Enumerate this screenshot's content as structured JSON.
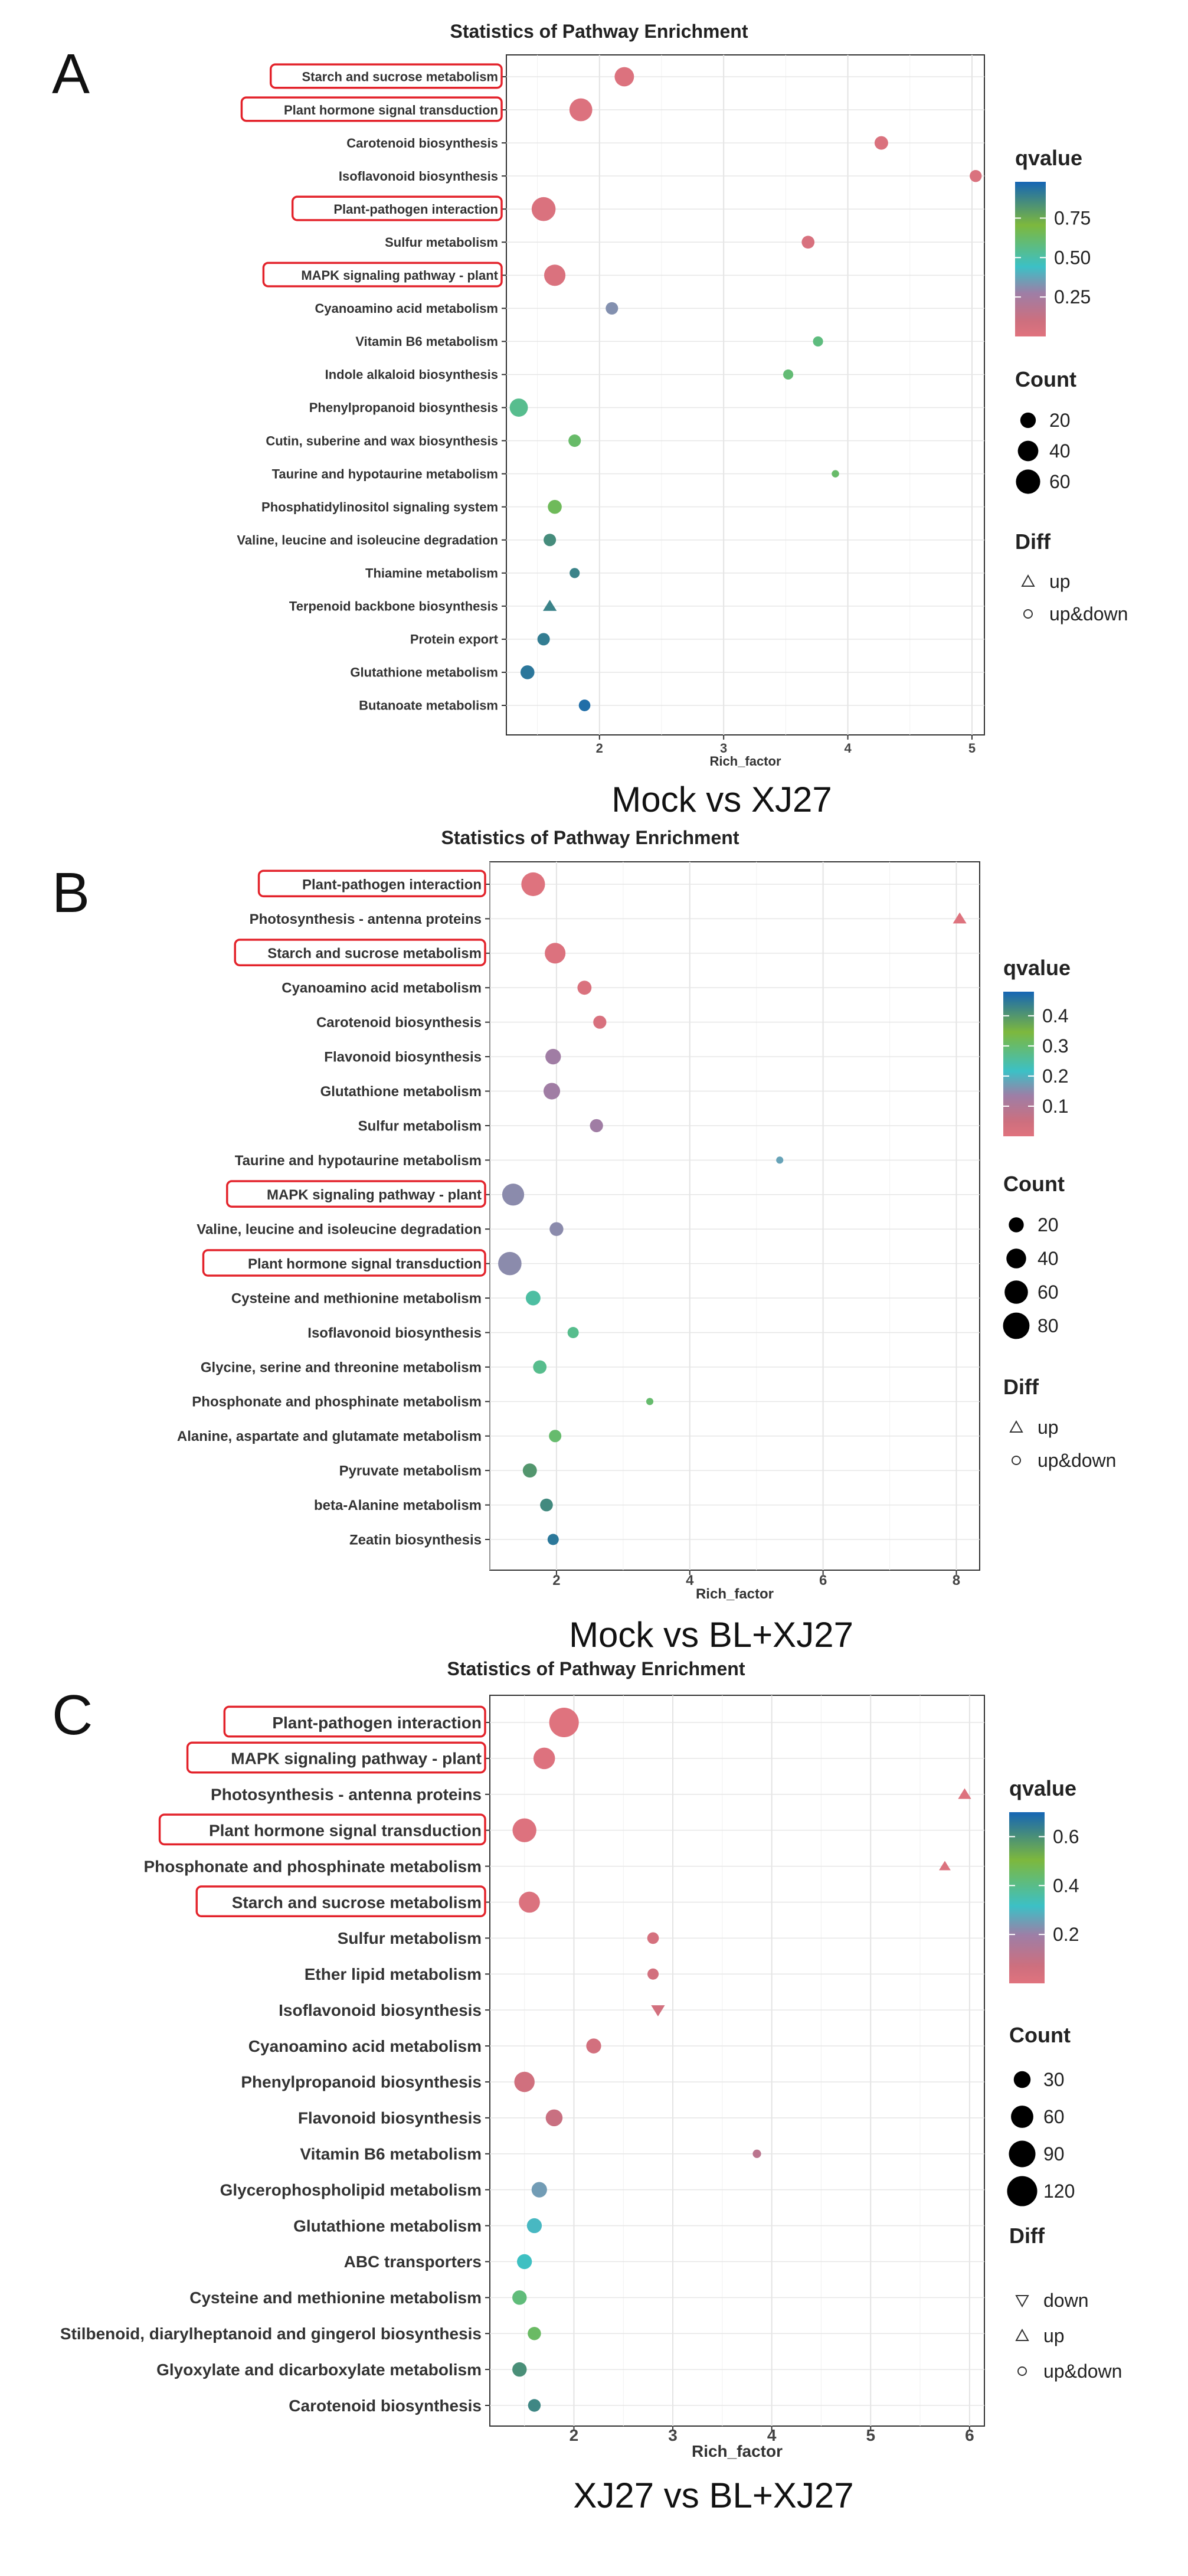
{
  "chart_data": [
    {
      "panel_label": "A",
      "type": "scatter",
      "title": "Statistics of Pathway Enrichment",
      "xlabel": "Rich_factor",
      "ylabel": "",
      "caption": "Mock  vs  XJ27",
      "x_ticks": [
        "2",
        "3",
        "4",
        "5"
      ],
      "xlim": [
        1.25,
        5.1
      ],
      "color_legend": {
        "title": "qvalue",
        "ticks": [
          "0.75",
          "0.50",
          "0.25"
        ],
        "tick_values": [
          0.75,
          0.5,
          0.25
        ],
        "range": [
          0.0,
          0.98
        ]
      },
      "size_legend": {
        "title": "Count",
        "ticks": [
          "20",
          "40",
          "60"
        ],
        "tick_values": [
          20,
          40,
          60
        ],
        "max": 70
      },
      "shape_legend": {
        "title": "Diff",
        "items": [
          "up",
          "up&down"
        ]
      },
      "categories": [
        "Starch and sucrose metabolism",
        "Plant hormone signal transduction",
        "Carotenoid biosynthesis",
        "Isoflavonoid biosynthesis",
        "Plant-pathogen interaction",
        "Sulfur metabolism",
        "MAPK signaling pathway - plant",
        "Cyanoamino acid metabolism",
        "Vitamin B6 metabolism",
        "Indole alkaloid biosynthesis",
        "Phenylpropanoid biosynthesis",
        "Cutin, suberine and wax biosynthesis",
        "Taurine and hypotaurine metabolism",
        "Phosphatidylinositol signaling system",
        "Valine, leucine and isoleucine degradation",
        "Thiamine metabolism",
        "Terpenoid backbone biosynthesis",
        "Protein export",
        "Glutathione metabolism",
        "Butanoate metabolism"
      ],
      "rich_factor": [
        2.2,
        1.85,
        4.27,
        5.03,
        1.55,
        3.68,
        1.64,
        2.1,
        3.76,
        3.52,
        1.35,
        1.8,
        3.9,
        1.64,
        1.6,
        1.8,
        1.6,
        1.55,
        1.42,
        1.88
      ],
      "count": [
        35,
        52,
        14,
        10,
        58,
        12,
        44,
        11,
        6,
        6,
        30,
        11,
        2,
        15,
        11,
        6,
        13,
        11,
        15,
        9
      ],
      "qvalue": [
        0.02,
        0.02,
        0.03,
        0.03,
        0.03,
        0.04,
        0.03,
        0.32,
        0.58,
        0.6,
        0.55,
        0.62,
        0.62,
        0.65,
        0.85,
        0.88,
        0.88,
        0.9,
        0.92,
        0.95
      ],
      "diff": [
        "up&down",
        "up&down",
        "up&down",
        "up&down",
        "up&down",
        "up&down",
        "up&down",
        "up&down",
        "up&down",
        "up&down",
        "up&down",
        "up&down",
        "up&down",
        "up&down",
        "up&down",
        "up&down",
        "up",
        "up&down",
        "up&down",
        "up&down"
      ],
      "highlighted": [
        "Starch and sucrose metabolism",
        "Plant hormone signal transduction",
        "Plant-pathogen interaction",
        "MAPK signaling pathway - plant"
      ]
    },
    {
      "panel_label": "B",
      "type": "scatter",
      "title": "Statistics of Pathway Enrichment",
      "xlabel": "Rich_factor",
      "ylabel": "",
      "caption": "Mock  vs  BL+XJ27",
      "x_ticks": [
        "2",
        "4",
        "6",
        "8"
      ],
      "xlim": [
        1.0,
        8.35
      ],
      "color_legend": {
        "title": "qvalue",
        "ticks": [
          "0.4",
          "0.3",
          "0.2",
          "0.1"
        ],
        "tick_values": [
          0.4,
          0.3,
          0.2,
          0.1
        ],
        "range": [
          0.0,
          0.48
        ]
      },
      "size_legend": {
        "title": "Count",
        "ticks": [
          "20",
          "40",
          "60",
          "80"
        ],
        "tick_values": [
          20,
          40,
          60,
          80
        ],
        "max": 85
      },
      "shape_legend": {
        "title": "Diff",
        "items": [
          "up",
          "up&down"
        ]
      },
      "categories": [
        "Plant-pathogen interaction",
        "Photosynthesis - antenna proteins",
        "Starch and sucrose metabolism",
        "Cyanoamino acid metabolism",
        "Carotenoid biosynthesis",
        "Flavonoid biosynthesis",
        "Glutathione metabolism",
        "Sulfur metabolism",
        "Taurine and hypotaurine metabolism",
        "MAPK signaling pathway - plant",
        "Valine, leucine and isoleucine degradation",
        "Plant hormone signal transduction",
        "Cysteine and methionine metabolism",
        "Isoflavonoid biosynthesis",
        "Glycine, serine and threonine metabolism",
        "Phosphonate and phosphinate metabolism",
        "Alanine, aspartate and glutamate metabolism",
        "Pyruvate metabolism",
        "beta-Alanine metabolism",
        "Zeatin biosynthesis"
      ],
      "rich_factor": [
        1.65,
        8.05,
        1.98,
        2.42,
        2.65,
        1.95,
        1.93,
        2.6,
        5.35,
        1.35,
        2.0,
        1.3,
        1.65,
        2.25,
        1.75,
        3.4,
        1.98,
        1.6,
        1.85,
        1.95
      ],
      "count": [
        62,
        14,
        45,
        17,
        14,
        22,
        26,
        14,
        2,
        52,
        16,
        60,
        19,
        9,
        15,
        2,
        12,
        17,
        13,
        9
      ],
      "qvalue": [
        0.005,
        0.005,
        0.01,
        0.015,
        0.02,
        0.13,
        0.13,
        0.13,
        0.18,
        0.15,
        0.15,
        0.15,
        0.25,
        0.27,
        0.27,
        0.3,
        0.3,
        0.4,
        0.42,
        0.45
      ],
      "diff": [
        "up&down",
        "up",
        "up&down",
        "up&down",
        "up&down",
        "up&down",
        "up&down",
        "up&down",
        "up&down",
        "up&down",
        "up&down",
        "up&down",
        "up&down",
        "up&down",
        "up&down",
        "up&down",
        "up&down",
        "up&down",
        "up&down",
        "up&down"
      ],
      "highlighted": [
        "Plant-pathogen interaction",
        "Starch and sucrose metabolism",
        "MAPK signaling pathway - plant",
        "Plant hormone signal transduction"
      ]
    },
    {
      "panel_label": "C",
      "type": "scatter",
      "title": "Statistics of Pathway Enrichment",
      "xlabel": "Rich_factor",
      "ylabel": "",
      "caption": "XJ27  vs  BL+XJ27",
      "x_ticks": [
        "2",
        "3",
        "4",
        "5",
        "6"
      ],
      "xlim": [
        1.15,
        6.15
      ],
      "color_legend": {
        "title": "qvalue",
        "ticks": [
          "0.6",
          "0.4",
          "0.2"
        ],
        "tick_values": [
          0.6,
          0.4,
          0.2
        ],
        "range": [
          0.0,
          0.7
        ]
      },
      "size_legend": {
        "title": "Count",
        "ticks": [
          "30",
          "60",
          "90",
          "120"
        ],
        "tick_values": [
          30,
          60,
          90,
          120
        ],
        "max": 125
      },
      "shape_legend": {
        "title": "Diff",
        "items": [
          "down",
          "up",
          "up&down"
        ]
      },
      "categories": [
        "Plant-pathogen interaction",
        "MAPK signaling pathway - plant",
        "Photosynthesis - antenna proteins",
        "Plant hormone signal transduction",
        "Phosphonate and phosphinate metabolism",
        "Starch and sucrose metabolism",
        "Sulfur metabolism",
        "Ether lipid metabolism",
        "Isoflavonoid biosynthesis",
        "Cyanoamino acid metabolism",
        "Phenylpropanoid biosynthesis",
        "Flavonoid biosynthesis",
        "Vitamin B6 metabolism",
        "Glycerophospholipid metabolism",
        "Glutathione metabolism",
        "ABC transporters",
        "Cysteine and methionine metabolism",
        "Stilbenoid, diarylheptanoid and gingerol biosynthesis",
        "Glyoxylate and dicarboxylate metabolism",
        "Carotenoid biosynthesis"
      ],
      "rich_factor": [
        1.9,
        1.7,
        5.95,
        1.5,
        5.75,
        1.55,
        2.8,
        2.8,
        2.85,
        2.2,
        1.5,
        1.8,
        3.85,
        1.65,
        1.6,
        1.5,
        1.45,
        1.6,
        1.45,
        1.6
      ],
      "count": [
        115,
        55,
        14,
        70,
        10,
        52,
        11,
        10,
        16,
        22,
        48,
        30,
        4,
        24,
        22,
        22,
        20,
        16,
        20,
        14
      ],
      "qvalue": [
        0.005,
        0.01,
        0.01,
        0.01,
        0.02,
        0.02,
        0.04,
        0.05,
        0.05,
        0.05,
        0.06,
        0.08,
        0.12,
        0.25,
        0.3,
        0.32,
        0.42,
        0.45,
        0.6,
        0.62
      ],
      "diff": [
        "up&down",
        "up&down",
        "up",
        "up&down",
        "up",
        "up&down",
        "up&down",
        "up&down",
        "down",
        "up&down",
        "up&down",
        "up&down",
        "up&down",
        "up&down",
        "up&down",
        "up&down",
        "up&down",
        "up&down",
        "up&down",
        "up&down"
      ],
      "highlighted": [
        "Plant-pathogen interaction",
        "MAPK signaling pathway - plant",
        "Plant hormone signal transduction",
        "Starch and sucrose metabolism"
      ]
    }
  ]
}
